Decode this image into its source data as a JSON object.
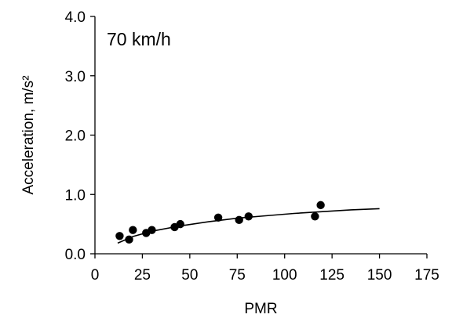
{
  "chart_data": {
    "type": "scatter",
    "title": "",
    "annotation": "70 km/h",
    "xlabel": "PMR",
    "ylabel": "Acceleration, m/s²",
    "xlim": [
      0,
      175
    ],
    "ylim": [
      0.0,
      4.0
    ],
    "x_ticks": [
      0,
      25,
      50,
      75,
      100,
      125,
      150,
      175
    ],
    "x_tick_labels": [
      "0",
      "25",
      "50",
      "75",
      "100",
      "125",
      "150",
      "175"
    ],
    "y_ticks": [
      0.0,
      1.0,
      2.0,
      3.0,
      4.0
    ],
    "y_tick_labels": [
      "0.0",
      "1.0",
      "2.0",
      "3.0",
      "4.0"
    ],
    "grid": false,
    "legend": "none",
    "series": [
      {
        "type": "scatter",
        "color": "#000000",
        "points": [
          {
            "x": 13,
            "y": 0.3
          },
          {
            "x": 18,
            "y": 0.24
          },
          {
            "x": 20,
            "y": 0.4
          },
          {
            "x": 27,
            "y": 0.35
          },
          {
            "x": 30,
            "y": 0.4
          },
          {
            "x": 42,
            "y": 0.45
          },
          {
            "x": 45,
            "y": 0.5
          },
          {
            "x": 65,
            "y": 0.61
          },
          {
            "x": 76,
            "y": 0.57
          },
          {
            "x": 81,
            "y": 0.63
          },
          {
            "x": 116,
            "y": 0.63
          },
          {
            "x": 119,
            "y": 0.82
          }
        ]
      },
      {
        "type": "line",
        "color": "#000000",
        "points": [
          {
            "x": 12,
            "y": 0.18
          },
          {
            "x": 20,
            "y": 0.29
          },
          {
            "x": 30,
            "y": 0.38
          },
          {
            "x": 45,
            "y": 0.47
          },
          {
            "x": 60,
            "y": 0.54
          },
          {
            "x": 75,
            "y": 0.6
          },
          {
            "x": 90,
            "y": 0.64
          },
          {
            "x": 105,
            "y": 0.68
          },
          {
            "x": 120,
            "y": 0.71
          },
          {
            "x": 135,
            "y": 0.74
          },
          {
            "x": 150,
            "y": 0.76
          }
        ]
      }
    ]
  }
}
